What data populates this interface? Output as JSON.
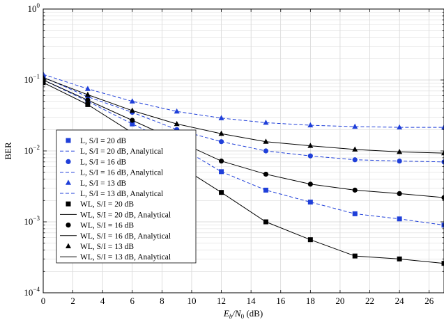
{
  "chart_data": {
    "type": "line",
    "title": "",
    "xlabel": "E_b/N_0 (dB)",
    "xlabel_parts": {
      "E": "E",
      "b": "b",
      "slash": "/N",
      "zero": "0",
      "unit": " (dB)"
    },
    "ylabel": "BER",
    "xlim": [
      0,
      27
    ],
    "ylim": [
      0.0001,
      1
    ],
    "yscale": "log",
    "grid": true,
    "legend_position": "lower-left",
    "xticks": [
      0,
      2,
      4,
      6,
      8,
      10,
      12,
      14,
      16,
      18,
      20,
      22,
      24,
      26
    ],
    "xtick_labels": [
      "0",
      "2",
      "4",
      "6",
      "8",
      "10",
      "12",
      "14",
      "16",
      "18",
      "20",
      "22",
      "24",
      "26"
    ],
    "yticks": [
      {
        "value": 0.0001,
        "mantissa": "10",
        "exponent": "−4"
      },
      {
        "value": 0.001,
        "mantissa": "10",
        "exponent": "−3"
      },
      {
        "value": 0.01,
        "mantissa": "10",
        "exponent": "−2"
      },
      {
        "value": 0.1,
        "mantissa": "10",
        "exponent": "−1"
      },
      {
        "value": 1,
        "mantissa": "10",
        "exponent": "0"
      }
    ],
    "series": [
      {
        "name": "L, S/I = 20 dB",
        "color": "#1f3fd9",
        "marker": "square",
        "line": "none",
        "x": [
          0,
          3,
          6,
          9,
          12,
          15,
          18,
          21,
          24,
          27
        ],
        "y": [
          0.1,
          0.05,
          0.024,
          0.012,
          0.0051,
          0.0028,
          0.0019,
          0.0013,
          0.0011,
          0.0009
        ]
      },
      {
        "name": "L, S/I = 20 dB, Analytical",
        "color": "#1f3fd9",
        "marker": "none",
        "line": "dashed",
        "x": [
          0,
          3,
          6,
          9,
          12,
          15,
          18,
          21,
          24,
          27
        ],
        "y": [
          0.1,
          0.05,
          0.024,
          0.012,
          0.0051,
          0.0028,
          0.0019,
          0.0013,
          0.0011,
          0.0009
        ]
      },
      {
        "name": "L, S/I = 16 dB",
        "color": "#1f3fd9",
        "marker": "circle",
        "line": "none",
        "x": [
          0,
          3,
          6,
          9,
          12,
          15,
          18,
          21,
          24,
          27
        ],
        "y": [
          0.11,
          0.058,
          0.035,
          0.02,
          0.0135,
          0.01,
          0.0085,
          0.0075,
          0.0072,
          0.007
        ]
      },
      {
        "name": "L, S/I = 16 dB, Analytical",
        "color": "#1f3fd9",
        "marker": "none",
        "line": "dashed",
        "x": [
          0,
          3,
          6,
          9,
          12,
          15,
          18,
          21,
          24,
          27
        ],
        "y": [
          0.11,
          0.058,
          0.035,
          0.02,
          0.0135,
          0.01,
          0.0085,
          0.0075,
          0.0072,
          0.007
        ]
      },
      {
        "name": "L, S/I = 13 dB",
        "color": "#1f3fd9",
        "marker": "triangle",
        "line": "none",
        "x": [
          0,
          3,
          6,
          9,
          12,
          15,
          18,
          21,
          24,
          27
        ],
        "y": [
          0.12,
          0.075,
          0.05,
          0.036,
          0.029,
          0.025,
          0.023,
          0.022,
          0.0215,
          0.0215
        ]
      },
      {
        "name": "L, S/I = 13 dB, Analytical",
        "color": "#1f3fd9",
        "marker": "none",
        "line": "dashed",
        "x": [
          0,
          3,
          6,
          9,
          12,
          15,
          18,
          21,
          24,
          27
        ],
        "y": [
          0.12,
          0.075,
          0.05,
          0.036,
          0.029,
          0.025,
          0.023,
          0.022,
          0.0215,
          0.0215
        ]
      },
      {
        "name": "WL, S/I = 20 dB",
        "color": "#000000",
        "marker": "square",
        "line": "none",
        "x": [
          0,
          3,
          6,
          9,
          12,
          15,
          18,
          21,
          24,
          27
        ],
        "y": [
          0.092,
          0.045,
          0.018,
          0.0065,
          0.0026,
          0.001,
          0.00056,
          0.00033,
          0.0003,
          0.00026
        ]
      },
      {
        "name": "WL, S/I = 20 dB, Analytical",
        "color": "#000000",
        "marker": "none",
        "line": "solid",
        "x": [
          0,
          3,
          6,
          9,
          12,
          15,
          18,
          21,
          24,
          27
        ],
        "y": [
          0.092,
          0.045,
          0.018,
          0.0065,
          0.0026,
          0.001,
          0.00056,
          0.00033,
          0.0003,
          0.00026
        ]
      },
      {
        "name": "WL, S/I = 16 dB",
        "color": "#000000",
        "marker": "circle",
        "line": "none",
        "x": [
          0,
          3,
          6,
          9,
          12,
          15,
          18,
          21,
          24,
          27
        ],
        "y": [
          0.1,
          0.052,
          0.027,
          0.014,
          0.0072,
          0.0047,
          0.0034,
          0.0028,
          0.0025,
          0.0022
        ]
      },
      {
        "name": "WL, S/I = 16 dB, Analytical",
        "color": "#000000",
        "marker": "none",
        "line": "solid",
        "x": [
          0,
          3,
          6,
          9,
          12,
          15,
          18,
          21,
          24,
          27
        ],
        "y": [
          0.1,
          0.052,
          0.027,
          0.014,
          0.0072,
          0.0047,
          0.0034,
          0.0028,
          0.0025,
          0.0022
        ]
      },
      {
        "name": "WL, S/I = 13 dB",
        "color": "#000000",
        "marker": "triangle",
        "line": "none",
        "x": [
          0,
          3,
          6,
          9,
          12,
          15,
          18,
          21,
          24,
          27
        ],
        "y": [
          0.108,
          0.062,
          0.037,
          0.024,
          0.0175,
          0.0135,
          0.0118,
          0.0105,
          0.0097,
          0.0093
        ]
      },
      {
        "name": "WL, S/I = 13 dB, Analytical",
        "color": "#000000",
        "marker": "none",
        "line": "solid",
        "x": [
          0,
          3,
          6,
          9,
          12,
          15,
          18,
          21,
          24,
          27
        ],
        "y": [
          0.108,
          0.062,
          0.037,
          0.024,
          0.0175,
          0.0135,
          0.0118,
          0.0105,
          0.0097,
          0.0093
        ]
      }
    ]
  }
}
